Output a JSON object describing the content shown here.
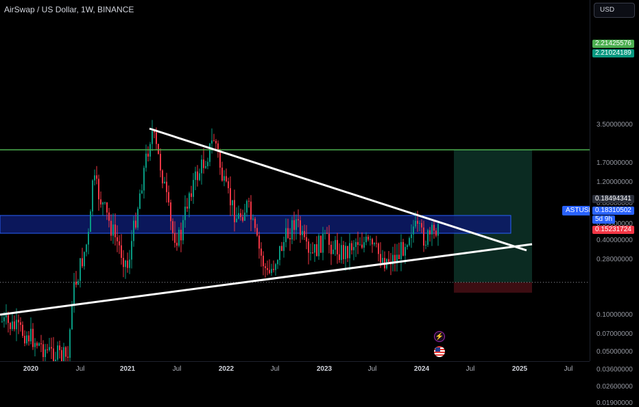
{
  "symbol": {
    "title": "AirSwap / US Dollar, 1W, BINANCE",
    "badge": "ASTUSD"
  },
  "price_axis": {
    "currency": "USD",
    "ticks": [
      {
        "label": "3.50000000",
        "value": 3.5
      },
      {
        "label": "1.70000000",
        "value": 1.7
      },
      {
        "label": "1.20000000",
        "value": 1.2
      },
      {
        "label": "0.80000000",
        "value": 0.8
      },
      {
        "label": "0.55000000",
        "value": 0.55
      },
      {
        "label": "0.40000000",
        "value": 0.4
      },
      {
        "label": "0.28000000",
        "value": 0.28
      },
      {
        "label": "0.10000000",
        "value": 0.1
      },
      {
        "label": "0.07000000",
        "value": 0.07
      },
      {
        "label": "0.05000000",
        "value": 0.05
      },
      {
        "label": "0.03600000",
        "value": 0.036
      },
      {
        "label": "0.02600000",
        "value": 0.026
      },
      {
        "label": "0.01900000",
        "value": 0.019
      }
    ],
    "tags": {
      "tp_upper": {
        "label": "2.21425576",
        "value": 2.21425576,
        "color": "#4caf50"
      },
      "tp_lower": {
        "label": "2.21024189",
        "value": 2.21024189,
        "color": "#089981"
      },
      "entry": {
        "label": "0.18494341",
        "value": 0.18494341,
        "color": "#2a2e39"
      },
      "last_price": {
        "label": "0.18310502",
        "value": 0.18310502,
        "color": "#2962ff"
      },
      "countdown": {
        "label": "5d 9h",
        "color": "#2962ff"
      },
      "stop": {
        "label": "0.15231724",
        "value": 0.15231724,
        "color": "#f23645"
      }
    }
  },
  "time_axis": {
    "labels": [
      {
        "text": "2020",
        "year": true
      },
      {
        "text": "Jul",
        "year": false
      },
      {
        "text": "2021",
        "year": true
      },
      {
        "text": "Jul",
        "year": false
      },
      {
        "text": "2022",
        "year": true
      },
      {
        "text": "Jul",
        "year": false
      },
      {
        "text": "2023",
        "year": true
      },
      {
        "text": "Jul",
        "year": false
      },
      {
        "text": "2024",
        "year": true
      },
      {
        "text": "Jul",
        "year": false
      },
      {
        "text": "2025",
        "year": true
      },
      {
        "text": "Jul",
        "year": false
      }
    ]
  },
  "colors": {
    "up": "#089981",
    "down": "#f23645",
    "trendline": "#ffffff",
    "horizontal_line": "#4caf50",
    "zone_fill": "#0d1b6b",
    "zone_border": "#2962ff",
    "profit_zone": "#0b2b22",
    "loss_zone": "#3d0d12"
  },
  "icons": {
    "event_1": "lightning-icon",
    "event_2": "us-flag-icon"
  }
}
